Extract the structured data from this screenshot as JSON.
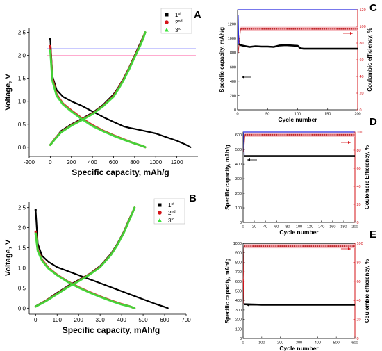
{
  "chart_data": [
    {
      "panel": "A",
      "type": "line",
      "xlabel": "Specific capacity, mAh/g",
      "ylabel": "Voltage, V",
      "xlim": [
        -200,
        1400
      ],
      "ylim": [
        -0.2,
        2.6
      ],
      "xticks": [
        "-200",
        "0",
        "200",
        "400",
        "600",
        "800",
        "1000",
        "1200"
      ],
      "yticks": [
        "0.0",
        "0.5",
        "1.0",
        "1.5",
        "2.0",
        "2.5"
      ],
      "legend": [
        "1",
        "2",
        "3"
      ],
      "legend_sup": [
        "st",
        "nd",
        "rd"
      ],
      "legend_position": "top-right",
      "series": [
        {
          "name": "1st",
          "color": "#000000",
          "discharge": {
            "x": [
              0,
              20,
              60,
              120,
              200,
              300,
              400,
              500,
              600,
              700,
              750,
              800,
              900,
              1000,
              1100,
              1200,
              1280,
              1330
            ],
            "y": [
              2.35,
              1.55,
              1.25,
              1.1,
              1.0,
              0.9,
              0.78,
              0.66,
              0.55,
              0.45,
              0.42,
              0.4,
              0.35,
              0.3,
              0.22,
              0.14,
              0.06,
              0.0
            ]
          },
          "charge": {
            "x": [
              0,
              50,
              100,
              200,
              300,
              400,
              500,
              600,
              650,
              700,
              750,
              800,
              850,
              880,
              900
            ],
            "y": [
              0.05,
              0.2,
              0.35,
              0.5,
              0.62,
              0.75,
              0.92,
              1.15,
              1.32,
              1.52,
              1.75,
              2.0,
              2.25,
              2.4,
              2.5
            ]
          }
        },
        {
          "name": "2nd",
          "color": "#d4141a",
          "discharge": {
            "x": [
              0,
              20,
              60,
              120,
              200,
              300,
              400,
              500,
              600,
              700,
              800,
              870,
              900
            ],
            "y": [
              2.2,
              1.5,
              1.15,
              0.95,
              0.8,
              0.63,
              0.48,
              0.36,
              0.26,
              0.17,
              0.08,
              0.03,
              0.0
            ]
          },
          "charge": {
            "x": [
              0,
              50,
              100,
              200,
              300,
              400,
              500,
              600,
              650,
              700,
              750,
              800,
              850,
              880,
              900
            ],
            "y": [
              0.05,
              0.2,
              0.33,
              0.48,
              0.6,
              0.73,
              0.9,
              1.12,
              1.3,
              1.5,
              1.73,
              1.98,
              2.22,
              2.38,
              2.5
            ]
          }
        },
        {
          "name": "3rd",
          "color": "#39e23a",
          "discharge": {
            "x": [
              0,
              20,
              60,
              120,
              200,
              300,
              400,
              500,
              600,
              700,
              800,
              870,
              900
            ],
            "y": [
              2.1,
              1.45,
              1.12,
              0.93,
              0.78,
              0.61,
              0.46,
              0.35,
              0.25,
              0.16,
              0.08,
              0.03,
              0.0
            ]
          },
          "charge": {
            "x": [
              0,
              50,
              100,
              200,
              300,
              400,
              500,
              600,
              650,
              700,
              750,
              800,
              850,
              880,
              900
            ],
            "y": [
              0.05,
              0.19,
              0.32,
              0.47,
              0.59,
              0.72,
              0.89,
              1.1,
              1.28,
              1.48,
              1.71,
              1.96,
              2.2,
              2.36,
              2.5
            ]
          }
        }
      ],
      "reference_lines_y": [
        2.0,
        2.15
      ]
    },
    {
      "panel": "B",
      "type": "line",
      "xlabel": "Specific capacity, mAh/g",
      "ylabel": "Voltage, V",
      "xlim": [
        -30,
        700
      ],
      "ylim": [
        -0.15,
        2.65
      ],
      "xticks": [
        "0",
        "100",
        "200",
        "300",
        "400",
        "500",
        "600",
        "700"
      ],
      "yticks": [
        "0.0",
        "0.5",
        "1.0",
        "1.5",
        "2.0",
        "2.5"
      ],
      "legend": [
        "1",
        "2",
        "3"
      ],
      "legend_sup": [
        "st",
        "nd",
        "rd"
      ],
      "legend_position": "top-right",
      "series": [
        {
          "name": "1st",
          "color": "#000000",
          "discharge": {
            "x": [
              0,
              10,
              30,
              60,
              100,
              150,
              200,
              250,
              300,
              350,
              400,
              450,
              500,
              550,
              600,
              615
            ],
            "y": [
              2.45,
              1.6,
              1.3,
              1.15,
              1.02,
              0.92,
              0.82,
              0.72,
              0.62,
              0.52,
              0.42,
              0.32,
              0.22,
              0.12,
              0.03,
              0.0
            ]
          },
          "charge": {
            "x": [
              0,
              50,
              100,
              150,
              200,
              250,
              300,
              350,
              380,
              410,
              430,
              450,
              460
            ],
            "y": [
              0.05,
              0.2,
              0.38,
              0.55,
              0.7,
              0.85,
              1.05,
              1.35,
              1.6,
              1.9,
              2.15,
              2.38,
              2.5
            ]
          }
        },
        {
          "name": "2nd",
          "color": "#d4141a",
          "discharge": {
            "x": [
              0,
              10,
              30,
              60,
              100,
              150,
              200,
              250,
              300,
              350,
              400,
              440,
              460
            ],
            "y": [
              1.9,
              1.45,
              1.2,
              1.0,
              0.83,
              0.66,
              0.52,
              0.4,
              0.29,
              0.19,
              0.1,
              0.04,
              0.0
            ]
          },
          "charge": {
            "x": [
              0,
              50,
              100,
              150,
              200,
              250,
              300,
              350,
              380,
              410,
              430,
              450,
              460
            ],
            "y": [
              0.04,
              0.19,
              0.36,
              0.53,
              0.68,
              0.84,
              1.03,
              1.33,
              1.58,
              1.88,
              2.13,
              2.37,
              2.5
            ]
          }
        },
        {
          "name": "3rd",
          "color": "#39e23a",
          "discharge": {
            "x": [
              0,
              10,
              30,
              60,
              100,
              150,
              200,
              250,
              300,
              350,
              400,
              440,
              460
            ],
            "y": [
              1.85,
              1.42,
              1.18,
              0.98,
              0.82,
              0.65,
              0.51,
              0.39,
              0.28,
              0.18,
              0.09,
              0.04,
              0.0
            ]
          },
          "charge": {
            "x": [
              0,
              50,
              100,
              150,
              200,
              250,
              300,
              350,
              380,
              410,
              430,
              450,
              460
            ],
            "y": [
              0.04,
              0.18,
              0.35,
              0.52,
              0.67,
              0.83,
              1.02,
              1.32,
              1.57,
              1.87,
              2.12,
              2.36,
              2.5
            ]
          }
        }
      ]
    },
    {
      "panel": "C",
      "type": "scatter",
      "xlabel": "Cycle number",
      "ylabel": "Specific capacity, mAh/g",
      "ylabel_right": "Coulombic efficiency, %",
      "xlim": [
        0,
        200
      ],
      "ylim": [
        0,
        1400
      ],
      "ylim_right": [
        0,
        120
      ],
      "xticks": [
        "0",
        "50",
        "100",
        "150",
        "200"
      ],
      "yticks": [
        "0",
        "200",
        "400",
        "600",
        "800",
        "1000",
        "1200"
      ],
      "yticks_right": [
        "0",
        "20",
        "40",
        "60",
        "80",
        "100",
        "120"
      ],
      "capacity": {
        "x": [
          1,
          2,
          5,
          10,
          20,
          30,
          40,
          50,
          60,
          70,
          80,
          90,
          100,
          105,
          110,
          120,
          130,
          140,
          150,
          160,
          170,
          180,
          190,
          200
        ],
        "y": [
          1330,
          920,
          905,
          895,
          880,
          890,
          885,
          885,
          880,
          900,
          905,
          900,
          895,
          860,
          855,
          855,
          855,
          855,
          855,
          855,
          855,
          855,
          855,
          855
        ]
      },
      "efficiency": {
        "x": [
          1,
          5,
          10,
          50,
          100,
          150,
          200
        ],
        "y": [
          68,
          97,
          97,
          97,
          97,
          97,
          97
        ]
      },
      "first_cycle_capacity": 1330
    },
    {
      "panel": "D",
      "type": "scatter",
      "xlabel": "Cycle number",
      "ylabel": "Specific capacity, mAh/g",
      "ylabel_right": "Coulombic Efficiency, %",
      "xlim": [
        0,
        200
      ],
      "ylim": [
        0,
        620
      ],
      "ylim_right": [
        0,
        100
      ],
      "xticks": [
        "0",
        "20",
        "40",
        "60",
        "80",
        "100",
        "120",
        "140",
        "160",
        "180",
        "200"
      ],
      "yticks": [
        "0",
        "100",
        "200",
        "300",
        "400",
        "500",
        "600"
      ],
      "yticks_right": [
        "0",
        "20",
        "40",
        "60",
        "80",
        "100"
      ],
      "capacity": {
        "x": [
          1,
          2,
          5,
          20,
          50,
          100,
          150,
          200
        ],
        "y": [
          615,
          455,
          455,
          455,
          455,
          455,
          455,
          455
        ]
      },
      "efficiency": {
        "x": [
          1,
          3,
          10,
          50,
          100,
          150,
          200
        ],
        "y": [
          78,
          96,
          97,
          97,
          97,
          97,
          97
        ]
      }
    },
    {
      "panel": "E",
      "type": "scatter",
      "xlabel": "Cycle number",
      "ylabel": "Specific capacity, mAh/g",
      "ylabel_right": "Coulombic efficiency, %",
      "xlim": [
        0,
        600
      ],
      "ylim": [
        0,
        1000
      ],
      "ylim_right": [
        0,
        100
      ],
      "xticks": [
        "0",
        "100",
        "200",
        "300",
        "400",
        "500",
        "600"
      ],
      "yticks": [
        "0",
        "100",
        "200",
        "300",
        "400",
        "500",
        "600",
        "700",
        "800",
        "900",
        "1000"
      ],
      "yticks_right": [
        "0",
        "20",
        "40",
        "60",
        "80",
        "100"
      ],
      "capacity": {
        "x": [
          1,
          5,
          50,
          100,
          200,
          300,
          400,
          500,
          600
        ],
        "y": [
          620,
          360,
          358,
          355,
          355,
          355,
          355,
          355,
          355
        ]
      },
      "efficiency": {
        "x": [
          1,
          5,
          50,
          100,
          200,
          300,
          400,
          500,
          600
        ],
        "y": [
          62,
          97,
          97,
          97,
          97,
          97,
          97,
          97,
          97
        ]
      }
    }
  ]
}
